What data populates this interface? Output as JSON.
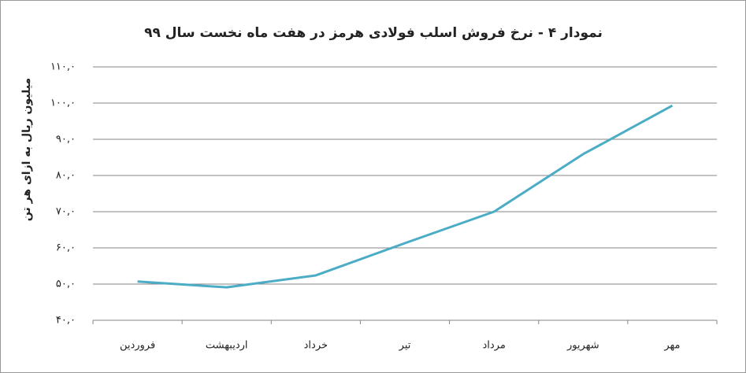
{
  "chart_data": {
    "type": "line",
    "title": "نمودار ۴ - نرخ فروش اسلب فولادی هرمز در هفت ماه نخست سال ۹۹",
    "y_label": "میلیون ریال به ازای هر تن",
    "categories": [
      "فروردین",
      "اردیبهشت",
      "خرداد",
      "تیر",
      "مرداد",
      "شهریور",
      "مهر"
    ],
    "values": [
      50.7,
      49.1,
      52.4,
      61.3,
      70.0,
      85.9,
      99.3
    ],
    "color": "#4bacc6",
    "ylim": [
      40,
      110
    ],
    "yticks": [
      {
        "value": 40,
        "label": "۴۰,۰"
      },
      {
        "value": 50,
        "label": "۵۰,۰"
      },
      {
        "value": 60,
        "label": "۶۰,۰"
      },
      {
        "value": 70,
        "label": "۷۰,۰"
      },
      {
        "value": 80,
        "label": "۸۰,۰"
      },
      {
        "value": 90,
        "label": "۹۰,۰"
      },
      {
        "value": 100,
        "label": "۱۰۰,۰"
      },
      {
        "value": 110,
        "label": "۱۱۰,۰"
      }
    ],
    "grid": true
  }
}
